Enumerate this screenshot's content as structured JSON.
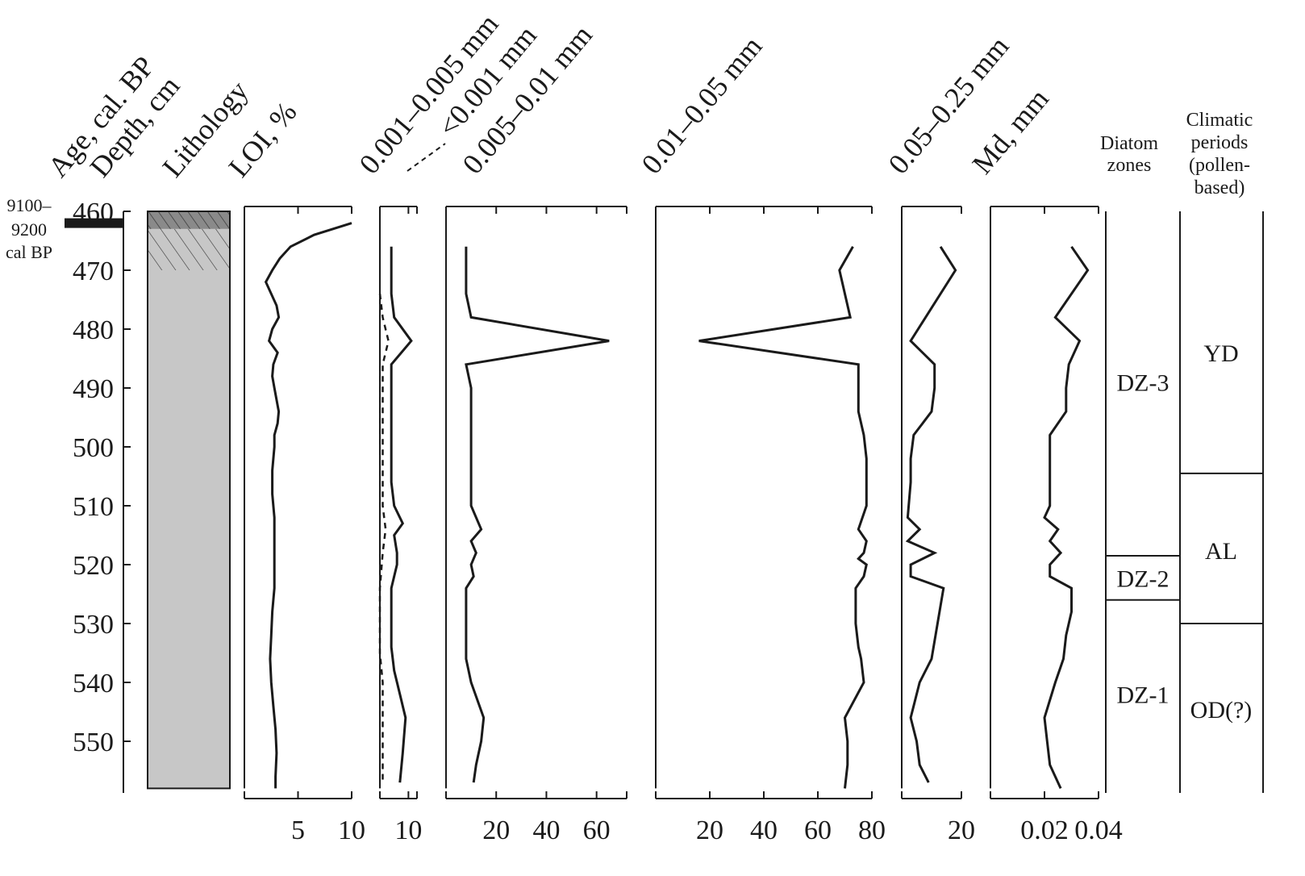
{
  "chart_data": {
    "type": "line",
    "depth_axis": {
      "label": "Depth, cm",
      "range": [
        460,
        558
      ],
      "ticks": [
        460,
        470,
        480,
        490,
        500,
        510,
        520,
        530,
        540,
        550
      ]
    },
    "age_axis": {
      "label": "Age, cal. BP",
      "markers": [
        {
          "depth": 462,
          "lines": [
            "9100–",
            "9200",
            "cal BP"
          ]
        }
      ]
    },
    "lithology": {
      "label": "Lithology",
      "units": [
        {
          "from": 460,
          "to": 463,
          "pattern": "dark-hatched",
          "color": "#8a8a8a"
        },
        {
          "from": 463,
          "to": 470,
          "pattern": "hatched",
          "color": "#c7c7c7"
        },
        {
          "from": 470,
          "to": 558,
          "pattern": "plain",
          "color": "#c7c7c7"
        }
      ]
    },
    "panels": [
      {
        "id": "loi",
        "title": "LOI, %",
        "xlim": [
          0,
          10
        ],
        "ticks": [
          5,
          10
        ],
        "series": [
          {
            "style": "solid",
            "points": [
              [
                10,
                462
              ],
              [
                6.5,
                464
              ],
              [
                4.3,
                466
              ],
              [
                3.3,
                468
              ],
              [
                2.6,
                470
              ],
              [
                2,
                472
              ],
              [
                3,
                476
              ],
              [
                3.2,
                478
              ],
              [
                2.6,
                480
              ],
              [
                2.3,
                482
              ],
              [
                3.1,
                484
              ],
              [
                2.7,
                486
              ],
              [
                2.6,
                488
              ],
              [
                2.8,
                490
              ],
              [
                3,
                492
              ],
              [
                3.2,
                494
              ],
              [
                3.1,
                496
              ],
              [
                2.8,
                498
              ],
              [
                2.8,
                500
              ],
              [
                2.6,
                504
              ],
              [
                2.6,
                508
              ],
              [
                2.8,
                512
              ],
              [
                2.8,
                516
              ],
              [
                2.8,
                520
              ],
              [
                2.8,
                524
              ],
              [
                2.6,
                528
              ],
              [
                2.5,
                532
              ],
              [
                2.4,
                536
              ],
              [
                2.5,
                540
              ],
              [
                2.7,
                544
              ],
              [
                2.9,
                548
              ],
              [
                3,
                552
              ],
              [
                2.9,
                556
              ],
              [
                2.9,
                558
              ]
            ]
          }
        ]
      },
      {
        "id": "fine",
        "title": "0.001–0.005 mm",
        "title2": "<0.001 mm",
        "xlim": [
          0,
          13
        ],
        "ticks": [
          10
        ],
        "series": [
          {
            "name": "0.001–0.005 mm",
            "style": "solid",
            "points": [
              [
                4,
                466
              ],
              [
                4,
                470
              ],
              [
                4,
                474
              ],
              [
                5,
                478
              ],
              [
                11,
                482
              ],
              [
                4,
                486
              ],
              [
                4,
                490
              ],
              [
                4,
                494
              ],
              [
                4,
                498
              ],
              [
                4,
                502
              ],
              [
                4,
                506
              ],
              [
                5,
                510
              ],
              [
                8,
                513
              ],
              [
                5,
                515
              ],
              [
                6,
                518
              ],
              [
                6,
                520
              ],
              [
                4,
                524
              ],
              [
                4,
                530
              ],
              [
                4,
                534
              ],
              [
                5,
                538
              ],
              [
                7,
                542
              ],
              [
                9,
                546
              ],
              [
                8,
                552
              ],
              [
                7,
                557
              ]
            ]
          },
          {
            "name": "<0.001 mm",
            "style": "dashed",
            "points": [
              [
                0,
                474
              ],
              [
                1,
                478
              ],
              [
                3,
                482
              ],
              [
                1,
                486
              ],
              [
                1,
                490
              ],
              [
                1,
                500
              ],
              [
                1,
                510
              ],
              [
                2,
                514
              ],
              [
                1,
                518
              ],
              [
                0,
                524
              ],
              [
                0,
                535
              ],
              [
                1,
                540
              ],
              [
                1,
                545
              ],
              [
                1,
                550
              ],
              [
                1,
                557
              ]
            ]
          }
        ]
      },
      {
        "id": "g005",
        "title": "0.005–0.01 mm",
        "xlim": [
          0,
          72
        ],
        "ticks": [
          20,
          40,
          60
        ],
        "series": [
          {
            "style": "solid",
            "points": [
              [
                8,
                466
              ],
              [
                8,
                470
              ],
              [
                8,
                474
              ],
              [
                10,
                478
              ],
              [
                65,
                482
              ],
              [
                8,
                486
              ],
              [
                10,
                490
              ],
              [
                10,
                494
              ],
              [
                10,
                498
              ],
              [
                10,
                502
              ],
              [
                10,
                506
              ],
              [
                10,
                510
              ],
              [
                14,
                514
              ],
              [
                10,
                516
              ],
              [
                12,
                518
              ],
              [
                10,
                520
              ],
              [
                11,
                522
              ],
              [
                8,
                524
              ],
              [
                8,
                528
              ],
              [
                8,
                532
              ],
              [
                8,
                536
              ],
              [
                10,
                540
              ],
              [
                15,
                546
              ],
              [
                14,
                550
              ],
              [
                12,
                554
              ],
              [
                11,
                557
              ]
            ]
          }
        ]
      },
      {
        "id": "g01",
        "title": "0.01–0.05 mm",
        "xlim": [
          0,
          80
        ],
        "ticks": [
          20,
          40,
          60,
          80
        ],
        "series": [
          {
            "style": "solid",
            "points": [
              [
                73,
                466
              ],
              [
                68,
                470
              ],
              [
                72,
                478
              ],
              [
                16,
                482
              ],
              [
                75,
                486
              ],
              [
                75,
                490
              ],
              [
                75,
                494
              ],
              [
                77,
                498
              ],
              [
                78,
                502
              ],
              [
                78,
                506
              ],
              [
                78,
                510
              ],
              [
                75,
                514
              ],
              [
                78,
                516
              ],
              [
                77,
                518
              ],
              [
                75,
                519
              ],
              [
                78,
                520
              ],
              [
                77,
                522
              ],
              [
                74,
                524
              ],
              [
                74,
                530
              ],
              [
                75,
                534
              ],
              [
                76,
                536
              ],
              [
                77,
                540
              ],
              [
                70,
                546
              ],
              [
                71,
                550
              ],
              [
                71,
                554
              ],
              [
                70,
                558
              ]
            ]
          }
        ]
      },
      {
        "id": "g05",
        "title": "0.05–0.25 mm",
        "xlim": [
          0,
          20
        ],
        "ticks": [
          20
        ],
        "series": [
          {
            "style": "solid",
            "points": [
              [
                13,
                466
              ],
              [
                18,
                470
              ],
              [
                3,
                482
              ],
              [
                11,
                486
              ],
              [
                11,
                490
              ],
              [
                10,
                494
              ],
              [
                4,
                498
              ],
              [
                3,
                502
              ],
              [
                3,
                506
              ],
              [
                2,
                512
              ],
              [
                6,
                514
              ],
              [
                2,
                516
              ],
              [
                11,
                518
              ],
              [
                3,
                520
              ],
              [
                3,
                522
              ],
              [
                14,
                524
              ],
              [
                12,
                530
              ],
              [
                10,
                536
              ],
              [
                6,
                540
              ],
              [
                3,
                546
              ],
              [
                5,
                550
              ],
              [
                6,
                554
              ],
              [
                9,
                557
              ]
            ]
          }
        ]
      },
      {
        "id": "md",
        "title": "Md, mm",
        "xlim": [
          0,
          0.04
        ],
        "ticks": [
          0.02,
          0.04
        ],
        "tick_labels": [
          "0.02",
          "0.04"
        ],
        "series": [
          {
            "style": "solid",
            "points": [
              [
                0.03,
                466
              ],
              [
                0.036,
                470
              ],
              [
                0.024,
                478
              ],
              [
                0.033,
                482
              ],
              [
                0.029,
                486
              ],
              [
                0.028,
                490
              ],
              [
                0.028,
                494
              ],
              [
                0.022,
                498
              ],
              [
                0.022,
                502
              ],
              [
                0.022,
                506
              ],
              [
                0.022,
                510
              ],
              [
                0.02,
                512
              ],
              [
                0.025,
                514
              ],
              [
                0.022,
                516
              ],
              [
                0.026,
                518
              ],
              [
                0.022,
                520
              ],
              [
                0.022,
                522
              ],
              [
                0.03,
                524
              ],
              [
                0.03,
                528
              ],
              [
                0.028,
                532
              ],
              [
                0.027,
                536
              ],
              [
                0.024,
                540
              ],
              [
                0.02,
                546
              ],
              [
                0.021,
                550
              ],
              [
                0.022,
                554
              ],
              [
                0.026,
                558
              ]
            ]
          }
        ]
      }
    ],
    "diatom_zones": {
      "title": [
        "Diatom",
        "zones"
      ],
      "zones": [
        {
          "label": "DZ-3",
          "from": 460,
          "to": 518.5
        },
        {
          "label": "DZ-2",
          "from": 518.5,
          "to": 526
        },
        {
          "label": "DZ-1",
          "from": 526,
          "to": 558
        }
      ]
    },
    "climatic_periods": {
      "title": [
        "Climatic",
        "periods",
        "(pollen-",
        "based)"
      ],
      "periods": [
        {
          "label": "YD",
          "from": 460,
          "to": 504.5
        },
        {
          "label": "AL",
          "from": 504.5,
          "to": 530
        },
        {
          "label": "OD(?)",
          "from": 530,
          "to": 558
        }
      ]
    }
  }
}
